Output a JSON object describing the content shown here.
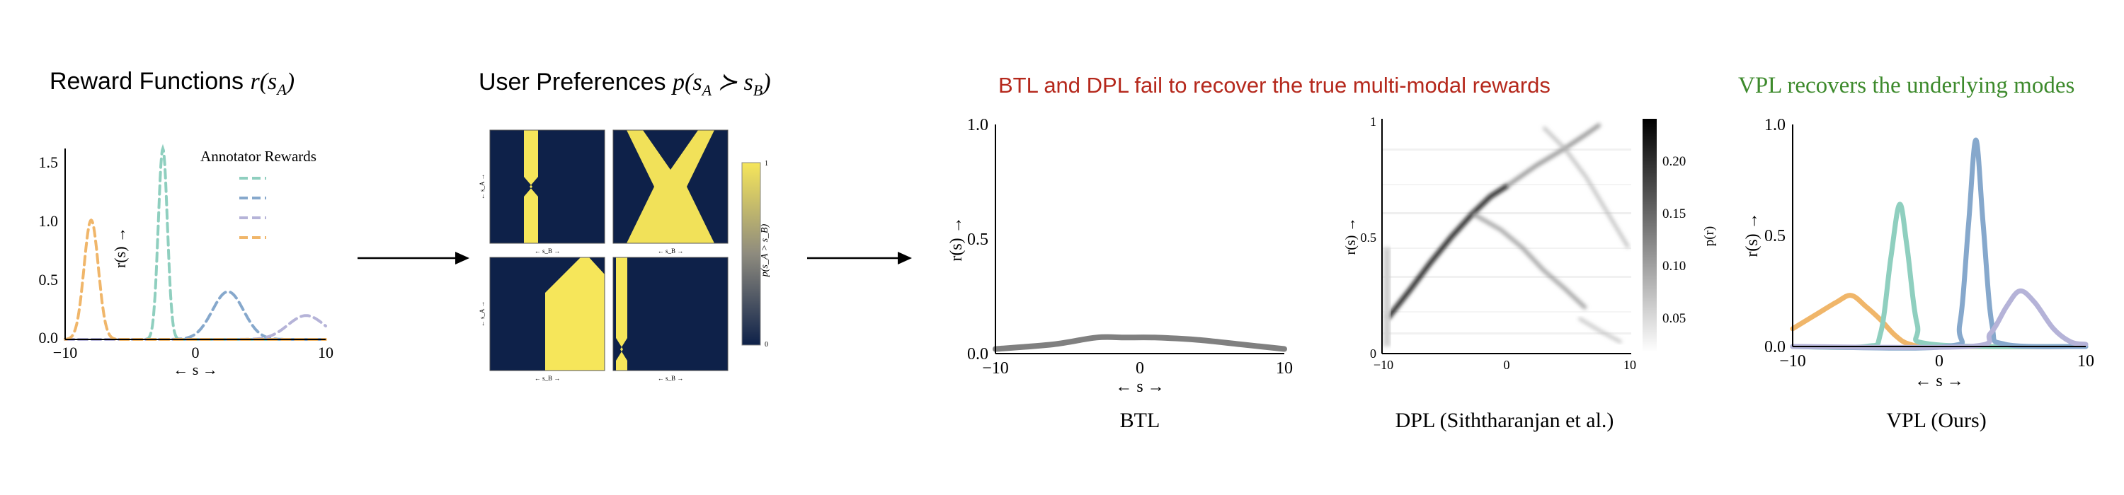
{
  "panels": {
    "reward_functions": {
      "title": "Reward Functions",
      "title_math": "r(s",
      "title_math_sub": "A",
      "title_math_end": ")",
      "ylabel": "r(s) →",
      "xlabel": "← s →",
      "legend_title": "Annotator Rewards",
      "xticks": [
        "−10",
        "0",
        "10"
      ],
      "yticks": [
        "0.0",
        "0.5",
        "1.0",
        "1.5"
      ]
    },
    "user_preferences": {
      "title": "User Preferences",
      "title_math": "p(s",
      "title_math_sub1": "A",
      "title_math_mid": " ≻ s",
      "title_math_sub2": "B",
      "title_math_end": ")",
      "colorbar_label": "p(s_A > s_B)",
      "colorbar_top": "1",
      "colorbar_bottom": "0",
      "mini_xlabel": "← s_B →",
      "mini_ylabel": "← s_A →"
    },
    "failure_banner": "BTL and DPL fail to recover the true multi-modal rewards",
    "btl": {
      "caption": "BTL",
      "ylabel": "r(s) →",
      "xlabel": "← s →",
      "xticks": [
        "−10",
        "0",
        "10"
      ],
      "yticks": [
        "0.0",
        "0.5",
        "1.0"
      ]
    },
    "dpl": {
      "caption": "DPL (Siththaranjan et al.)",
      "ylabel": "r(s) →",
      "colorbar_label": "p(r)",
      "xticks": [
        "−10",
        "0",
        "10"
      ],
      "yticks": [
        "0",
        "0.5",
        "1"
      ],
      "cbar_ticks": [
        "0.20",
        "0.15",
        "0.10",
        "0.05"
      ]
    },
    "vpl": {
      "banner": "VPL recovers the underlying modes",
      "caption": "VPL (Ours)",
      "ylabel": "r(s) →",
      "xlabel": "← s →",
      "xticks": [
        "−10",
        "0",
        "10"
      ],
      "yticks": [
        "0.0",
        "0.5",
        "1.0"
      ]
    }
  },
  "colors": {
    "teal": "#8fcfbf",
    "blue": "#86a8cc",
    "lavender": "#b5b3d8",
    "orange": "#f0b66a",
    "gray": "#808080",
    "navy": "#0e2149",
    "yellow": "#f6e65a",
    "red_text": "#b5281c",
    "green_text": "#3d8a2c"
  },
  "chart_data": [
    {
      "type": "line",
      "id": "annotator_rewards",
      "xlim": [
        -10,
        10
      ],
      "ylim": [
        0,
        1.6
      ],
      "style": "dashed",
      "series": [
        {
          "color": "teal",
          "center": -2.5,
          "peak": 1.6,
          "width": 0.35
        },
        {
          "color": "blue",
          "center": 2.5,
          "peak": 0.4,
          "width": 1.2
        },
        {
          "color": "lavender",
          "center": 8.5,
          "peak": 0.2,
          "width": 1.4
        },
        {
          "color": "orange",
          "center": -8.0,
          "peak": 1.0,
          "width": 0.55
        }
      ]
    },
    {
      "type": "line",
      "id": "btl",
      "xlim": [
        -10,
        10
      ],
      "ylim": [
        0,
        1.0
      ],
      "series": [
        {
          "color": "gray",
          "x": [
            -10,
            -6,
            -3,
            -1,
            1,
            4,
            7,
            10
          ],
          "y": [
            0.02,
            0.04,
            0.07,
            0.07,
            0.07,
            0.06,
            0.04,
            0.02
          ]
        }
      ]
    },
    {
      "type": "heatmap",
      "id": "dpl",
      "xlim": [
        -10,
        10
      ],
      "ylim": [
        0,
        1
      ],
      "crange": [
        0,
        0.24
      ]
    },
    {
      "type": "line",
      "id": "vpl",
      "xlim": [
        -10,
        10
      ],
      "ylim": [
        0,
        1.0
      ],
      "series": [
        {
          "color": "orange",
          "x": [
            -10,
            -8.5,
            -7,
            -6,
            -5,
            -4,
            -3,
            -2,
            0,
            10
          ],
          "y": [
            0.08,
            0.14,
            0.2,
            0.23,
            0.18,
            0.12,
            0.05,
            0.01,
            0.0,
            0.0
          ]
        },
        {
          "color": "teal",
          "x": [
            -10,
            -5,
            -4,
            -3.3,
            -2.7,
            -2.2,
            -1.5,
            -0.5,
            10
          ],
          "y": [
            0.0,
            0.0,
            0.06,
            0.4,
            0.64,
            0.45,
            0.1,
            0.01,
            0.0
          ]
        },
        {
          "color": "blue",
          "x": [
            -10,
            0.5,
            1.4,
            2.0,
            2.5,
            3.0,
            3.6,
            4.5,
            10
          ],
          "y": [
            0.0,
            0.0,
            0.1,
            0.55,
            0.93,
            0.55,
            0.1,
            0.01,
            0.0
          ]
        },
        {
          "color": "lavender",
          "x": [
            -10,
            2,
            3.5,
            4.6,
            5.5,
            6.5,
            7.8,
            9,
            10
          ],
          "y": [
            0.0,
            0.0,
            0.06,
            0.18,
            0.25,
            0.2,
            0.08,
            0.02,
            0.01
          ]
        }
      ]
    }
  ]
}
